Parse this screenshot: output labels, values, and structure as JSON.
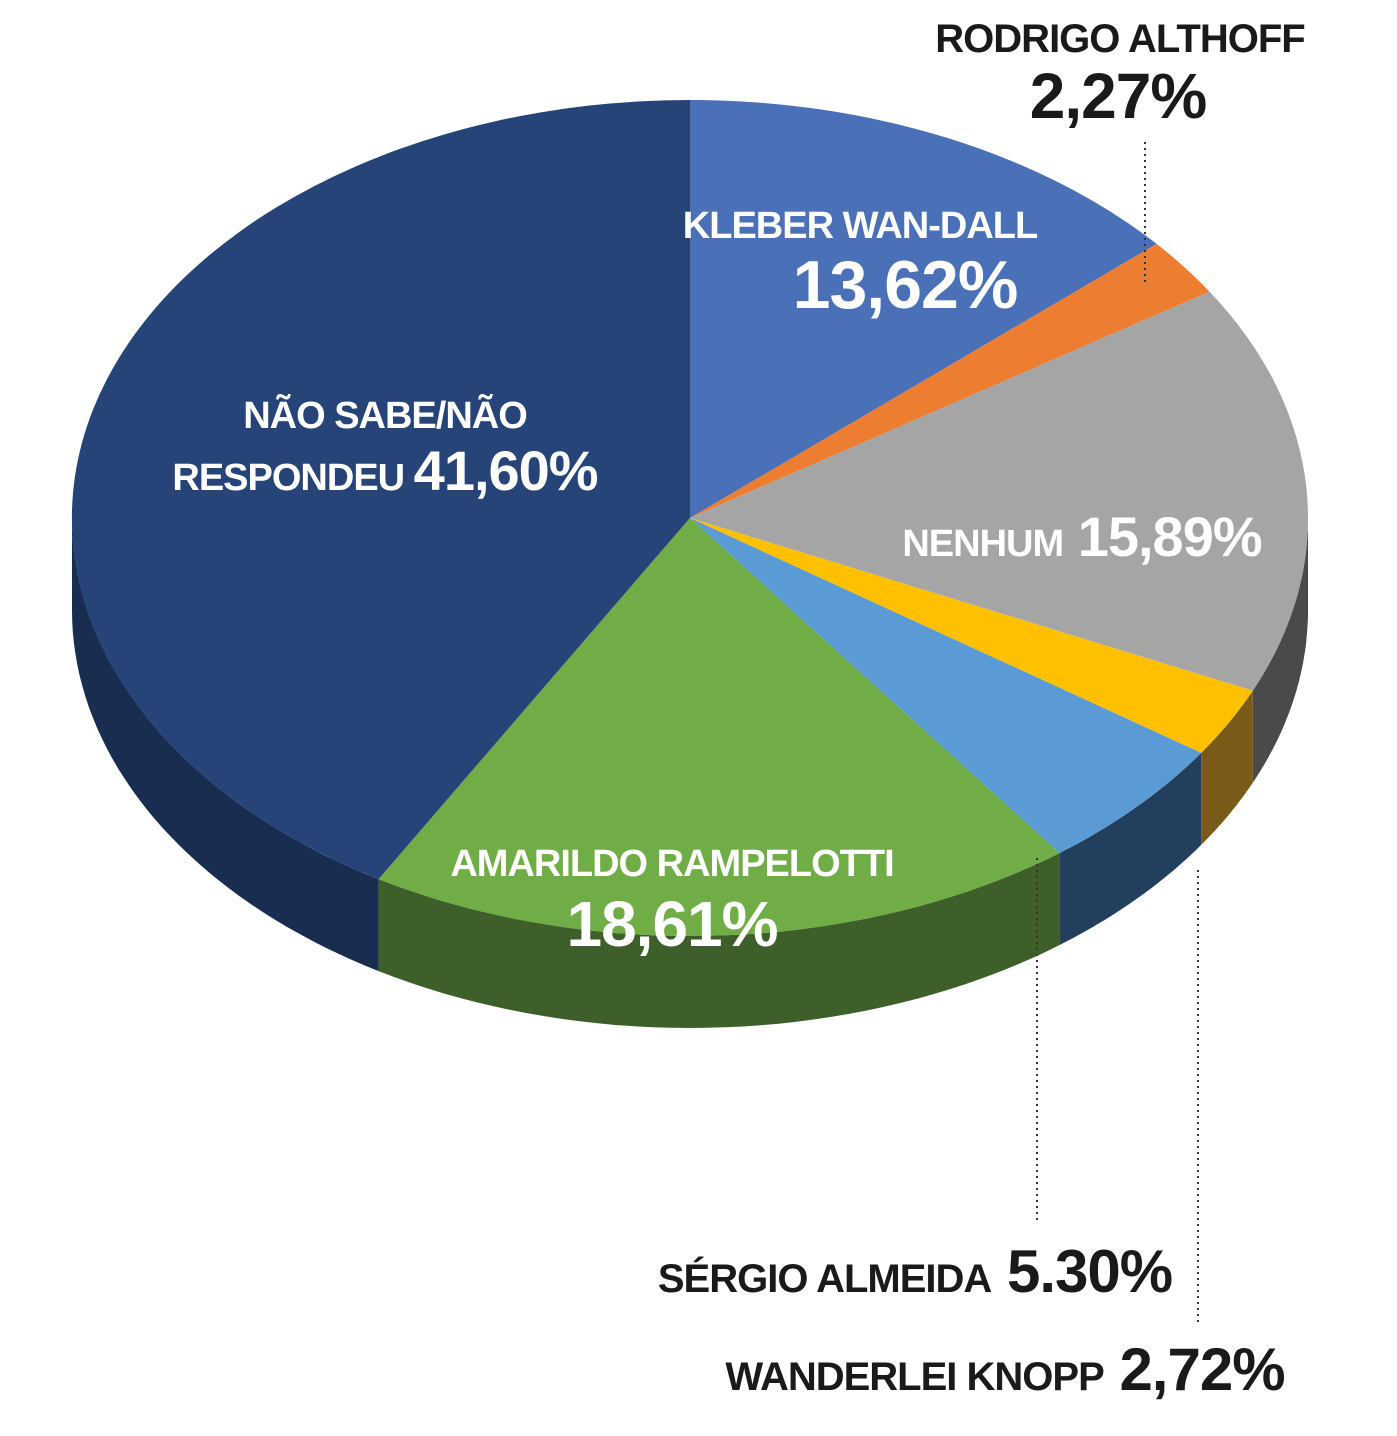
{
  "chart_data": {
    "type": "pie",
    "title": "",
    "slices": [
      {
        "name": "KLEBER WAN-DALL",
        "value": 13.62,
        "value_label": "13,62%",
        "color": "#4a70b8",
        "side_color": "#2e4a80"
      },
      {
        "name": "RODRIGO ALTHOFF",
        "value": 2.27,
        "value_label": "2,27%",
        "color": "#ed7d31",
        "side_color": "#a65520"
      },
      {
        "name": "NENHUM",
        "value": 15.89,
        "value_label": "15,89%",
        "color": "#a5a5a5",
        "side_color": "#4a4a4a"
      },
      {
        "name": "WANDERLEI KNOPP",
        "value": 2.72,
        "value_label": "2,72%",
        "color": "#ffc000",
        "side_color": "#7a5a18"
      },
      {
        "name": "SÉRGIO ALMEIDA",
        "value": 5.3,
        "value_label": "5.30%",
        "color": "#5b9bd5",
        "side_color": "#22405e"
      },
      {
        "name": "AMARILDO RAMPELOTTI",
        "value": 18.61,
        "value_label": "18,61%",
        "color": "#70ad47",
        "side_color": "#3f5f2a"
      },
      {
        "name": "NÃO SABE/NÃO RESPONDEU",
        "value": 41.6,
        "value_label": "41,60%",
        "color": "#264478",
        "side_color": "#182d50"
      }
    ]
  }
}
